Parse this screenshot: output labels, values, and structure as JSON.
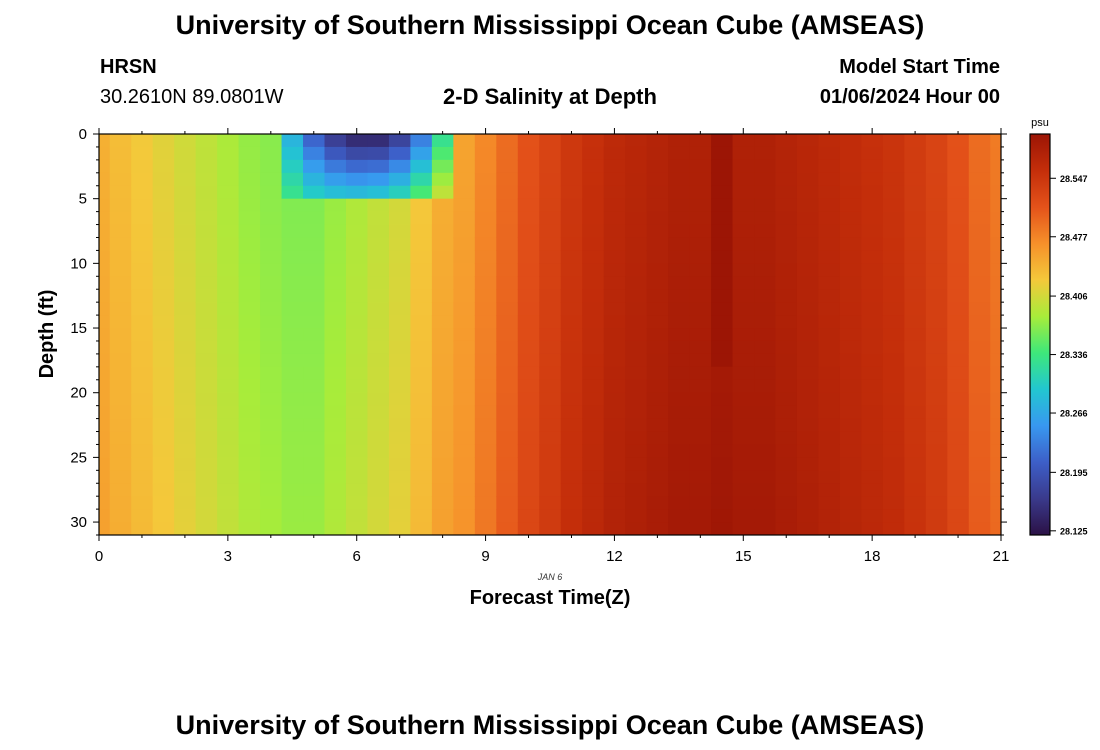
{
  "header": {
    "title": "University of Southern Mississippi Ocean Cube (AMSEAS)",
    "station_name": "HRSN",
    "coordinates": "30.2610N  89.0801W",
    "subtitle": "2-D Salinity at Depth",
    "model_start_label": "Model Start Time",
    "model_start_value": "01/06/2024 Hour 00"
  },
  "footer": {
    "title": "University of Southern Mississippi Ocean Cube (AMSEAS)"
  },
  "chart_data": {
    "type": "heatmap",
    "title": "2-D Salinity at Depth",
    "xlabel": "Forecast Time(Z)",
    "ylabel": "Depth (ft)",
    "date_label": "JAN 6",
    "xlim": [
      0,
      21
    ],
    "ylim": [
      0,
      31
    ],
    "x_ticks": [
      0,
      3,
      6,
      9,
      12,
      15,
      18,
      21
    ],
    "y_ticks": [
      0,
      5,
      10,
      15,
      20,
      25,
      30
    ],
    "colorbar": {
      "unit": "psu",
      "ticks": [
        "28.125",
        "28.195",
        "28.266",
        "28.336",
        "28.406",
        "28.477",
        "28.547"
      ],
      "range": [
        28.12,
        28.6
      ],
      "colors": [
        "#2b1145",
        "#3a3a8c",
        "#3d5fc8",
        "#3898f0",
        "#22c7d0",
        "#3ee87a",
        "#a8ec3a",
        "#f4c83a",
        "#f6902a",
        "#e4521a",
        "#c42e0a",
        "#9c1505"
      ]
    },
    "times": [
      0,
      0.5,
      1,
      1.5,
      2,
      2.5,
      3,
      3.5,
      4,
      4.5,
      5,
      5.5,
      6,
      6.5,
      7,
      7.5,
      8,
      8.5,
      9,
      9.5,
      10,
      10.5,
      11,
      11.5,
      12,
      12.5,
      13,
      13.5,
      14,
      14.5,
      15,
      15.5,
      16,
      16.5,
      17,
      17.5,
      18,
      18.5,
      19,
      19.5,
      20,
      20.5,
      21
    ],
    "salinity_bottom_psu": [
      28.45,
      28.44,
      28.43,
      28.42,
      28.41,
      28.4,
      28.39,
      28.38,
      28.375,
      28.37,
      28.37,
      28.38,
      28.39,
      28.4,
      28.41,
      28.43,
      28.45,
      28.46,
      28.48,
      28.5,
      28.52,
      28.535,
      28.55,
      28.56,
      28.57,
      28.575,
      28.58,
      28.585,
      28.585,
      28.59,
      28.585,
      28.585,
      28.58,
      28.575,
      28.57,
      28.565,
      28.56,
      28.555,
      28.545,
      28.535,
      28.52,
      28.5,
      28.49
    ],
    "surface_anomaly": {
      "time_range": [
        4,
        8.5
      ],
      "depth_range": [
        0,
        5
      ],
      "min_psu": 28.13
    },
    "max_column": {
      "time": 14.5,
      "depth_range": [
        0,
        18
      ],
      "max_psu": 28.6
    }
  }
}
